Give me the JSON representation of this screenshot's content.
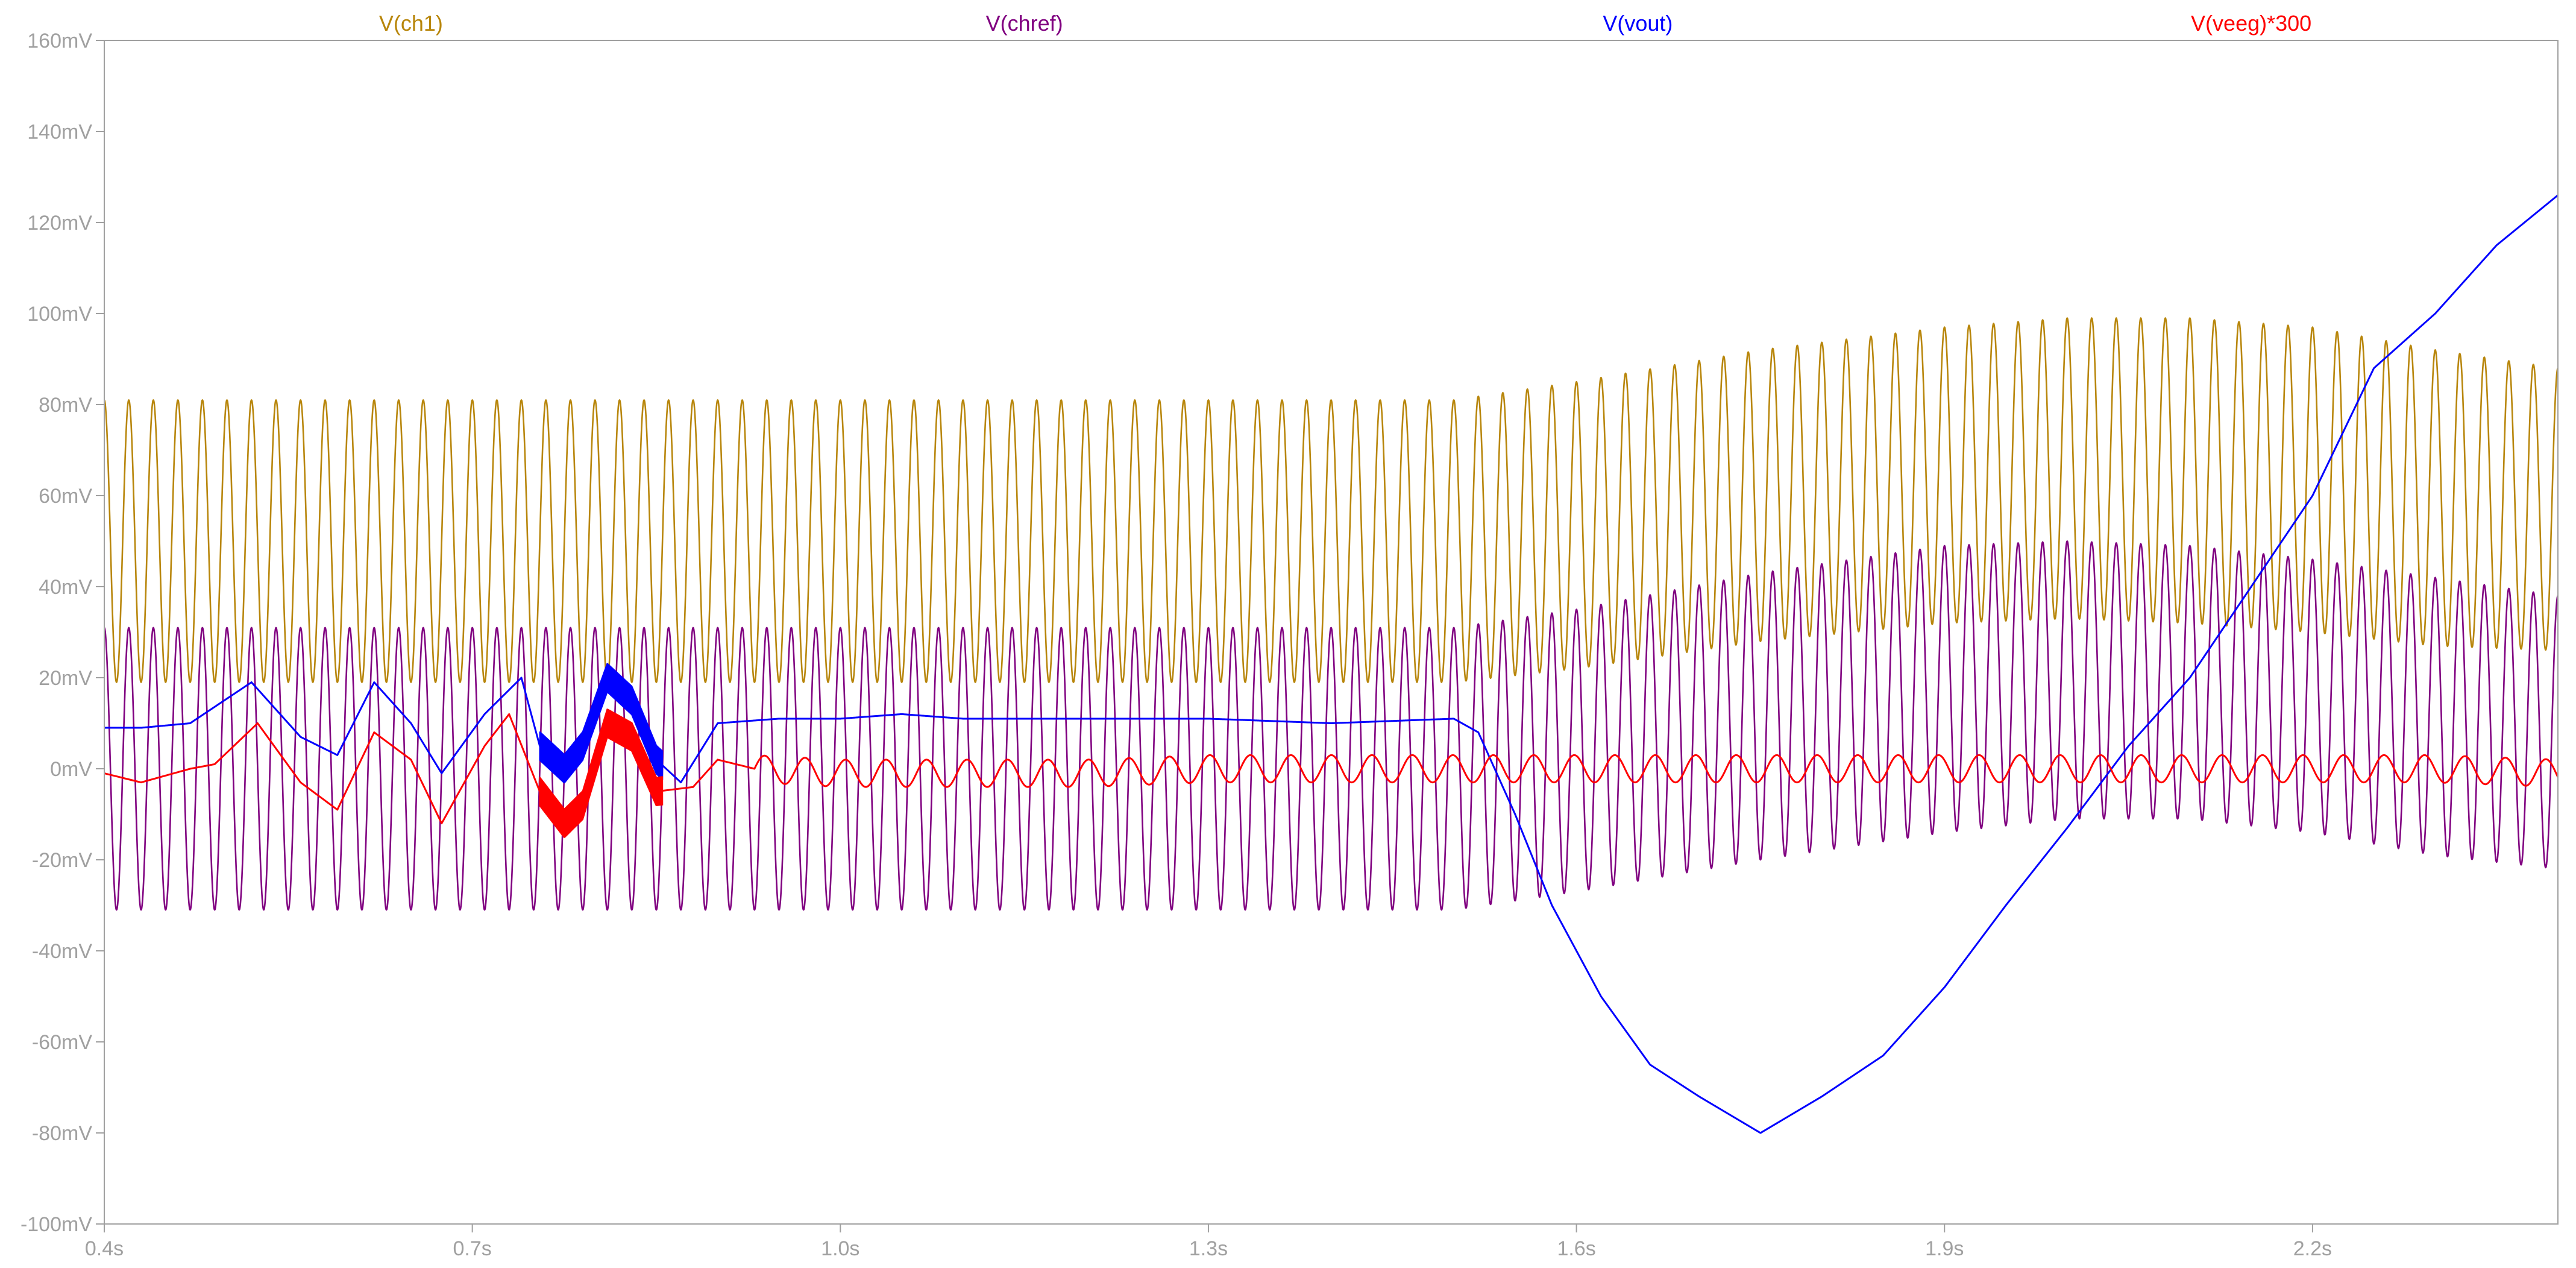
{
  "chart_data": {
    "type": "line",
    "title": "",
    "xlabel": "",
    "ylabel": "",
    "xlim": [
      0.4,
      2.4
    ],
    "ylim": [
      -100,
      160
    ],
    "grid": false,
    "legend_position": "top",
    "x_ticks": [
      {
        "value": 0.4,
        "label": "0.4s"
      },
      {
        "value": 0.7,
        "label": "0.7s"
      },
      {
        "value": 1.0,
        "label": "1.0s"
      },
      {
        "value": 1.3,
        "label": "1.3s"
      },
      {
        "value": 1.6,
        "label": "1.6s"
      },
      {
        "value": 1.9,
        "label": "1.9s"
      },
      {
        "value": 2.2,
        "label": "2.2s"
      }
    ],
    "y_ticks": [
      {
        "value": 160,
        "label": "160mV"
      },
      {
        "value": 140,
        "label": "140mV"
      },
      {
        "value": 120,
        "label": "120mV"
      },
      {
        "value": 100,
        "label": "100mV"
      },
      {
        "value": 80,
        "label": "80mV"
      },
      {
        "value": 60,
        "label": "60mV"
      },
      {
        "value": 40,
        "label": "40mV"
      },
      {
        "value": 20,
        "label": "20mV"
      },
      {
        "value": 0,
        "label": "0mV"
      },
      {
        "value": -20,
        "label": "-20mV"
      },
      {
        "value": -40,
        "label": "-40mV"
      },
      {
        "value": -60,
        "label": "-60mV"
      },
      {
        "value": -80,
        "label": "-80mV"
      },
      {
        "value": -100,
        "label": "-100mV"
      }
    ],
    "series": [
      {
        "name": "V(ch1)",
        "color": "#b8860b",
        "kind": "oscillation",
        "period": 0.02,
        "phase": 0.4,
        "envelope": {
          "x": [
            0.4,
            1.5,
            1.6,
            1.75,
            1.9,
            2.0,
            2.1,
            2.2,
            2.3,
            2.4
          ],
          "high": [
            81,
            81,
            85,
            92,
            97,
            99,
            99,
            97,
            92,
            88
          ],
          "low": [
            19,
            19,
            22,
            28,
            32,
            33,
            32,
            30,
            27,
            26
          ]
        }
      },
      {
        "name": "V(chref)",
        "color": "#800080",
        "kind": "oscillation",
        "period": 0.02,
        "phase": 0.4,
        "envelope": {
          "x": [
            0.4,
            1.5,
            1.6,
            1.75,
            1.9,
            2.0,
            2.1,
            2.2,
            2.3,
            2.4
          ],
          "high": [
            31,
            31,
            35,
            43,
            49,
            50,
            49,
            46,
            42,
            38
          ],
          "low": [
            -31,
            -31,
            -27,
            -20,
            -14,
            -11,
            -11,
            -14,
            -19,
            -22
          ]
        }
      },
      {
        "name": "V(vout)",
        "color": "#0000ff",
        "kind": "line",
        "x": [
          0.4,
          0.43,
          0.47,
          0.52,
          0.56,
          0.59,
          0.62,
          0.65,
          0.675,
          0.71,
          0.74,
          0.755,
          0.775,
          0.79,
          0.81,
          0.83,
          0.85,
          0.87,
          0.9,
          0.95,
          1.0,
          1.05,
          1.1,
          1.2,
          1.3,
          1.4,
          1.5,
          1.52,
          1.55,
          1.58,
          1.62,
          1.66,
          1.7,
          1.75,
          1.8,
          1.85,
          1.9,
          1.95,
          2.0,
          2.05,
          2.1,
          2.15,
          2.2,
          2.25,
          2.3,
          2.35,
          2.4
        ],
        "y": [
          9,
          9,
          10,
          19,
          7,
          3,
          19,
          10,
          -1,
          12,
          20,
          5,
          0,
          5,
          20,
          15,
          2,
          -3,
          10,
          11,
          11,
          12,
          11,
          11,
          11,
          10,
          11,
          8,
          -10,
          -30,
          -50,
          -65,
          -72,
          -80,
          -72,
          -63,
          -48,
          -30,
          -13,
          5,
          20,
          40,
          60,
          88,
          100,
          115,
          126
        ]
      },
      {
        "name": "V(veeg)*300",
        "color": "#ff0000",
        "kind": "line",
        "x": [
          0.4,
          0.43,
          0.47,
          0.49,
          0.525,
          0.56,
          0.59,
          0.62,
          0.65,
          0.675,
          0.71,
          0.73,
          0.755,
          0.775,
          0.79,
          0.81,
          0.83,
          0.85,
          0.88,
          0.9,
          0.93,
          1.0,
          1.1,
          1.2,
          1.3,
          1.4,
          1.5,
          1.6,
          1.7,
          1.8,
          1.9,
          2.0,
          2.1,
          2.2,
          2.3,
          2.4
        ],
        "y": [
          -1,
          -3,
          0,
          1,
          10,
          -3,
          -9,
          8,
          2,
          -12,
          5,
          12,
          -5,
          -12,
          -8,
          10,
          7,
          -5,
          -4,
          2,
          0,
          -1,
          -1,
          -1,
          0,
          0,
          0,
          0,
          0,
          0,
          0,
          0,
          0,
          0,
          0,
          -1
        ],
        "ripple": {
          "period": 0.033,
          "amplitude": 3,
          "start": 0.93
        }
      }
    ]
  }
}
